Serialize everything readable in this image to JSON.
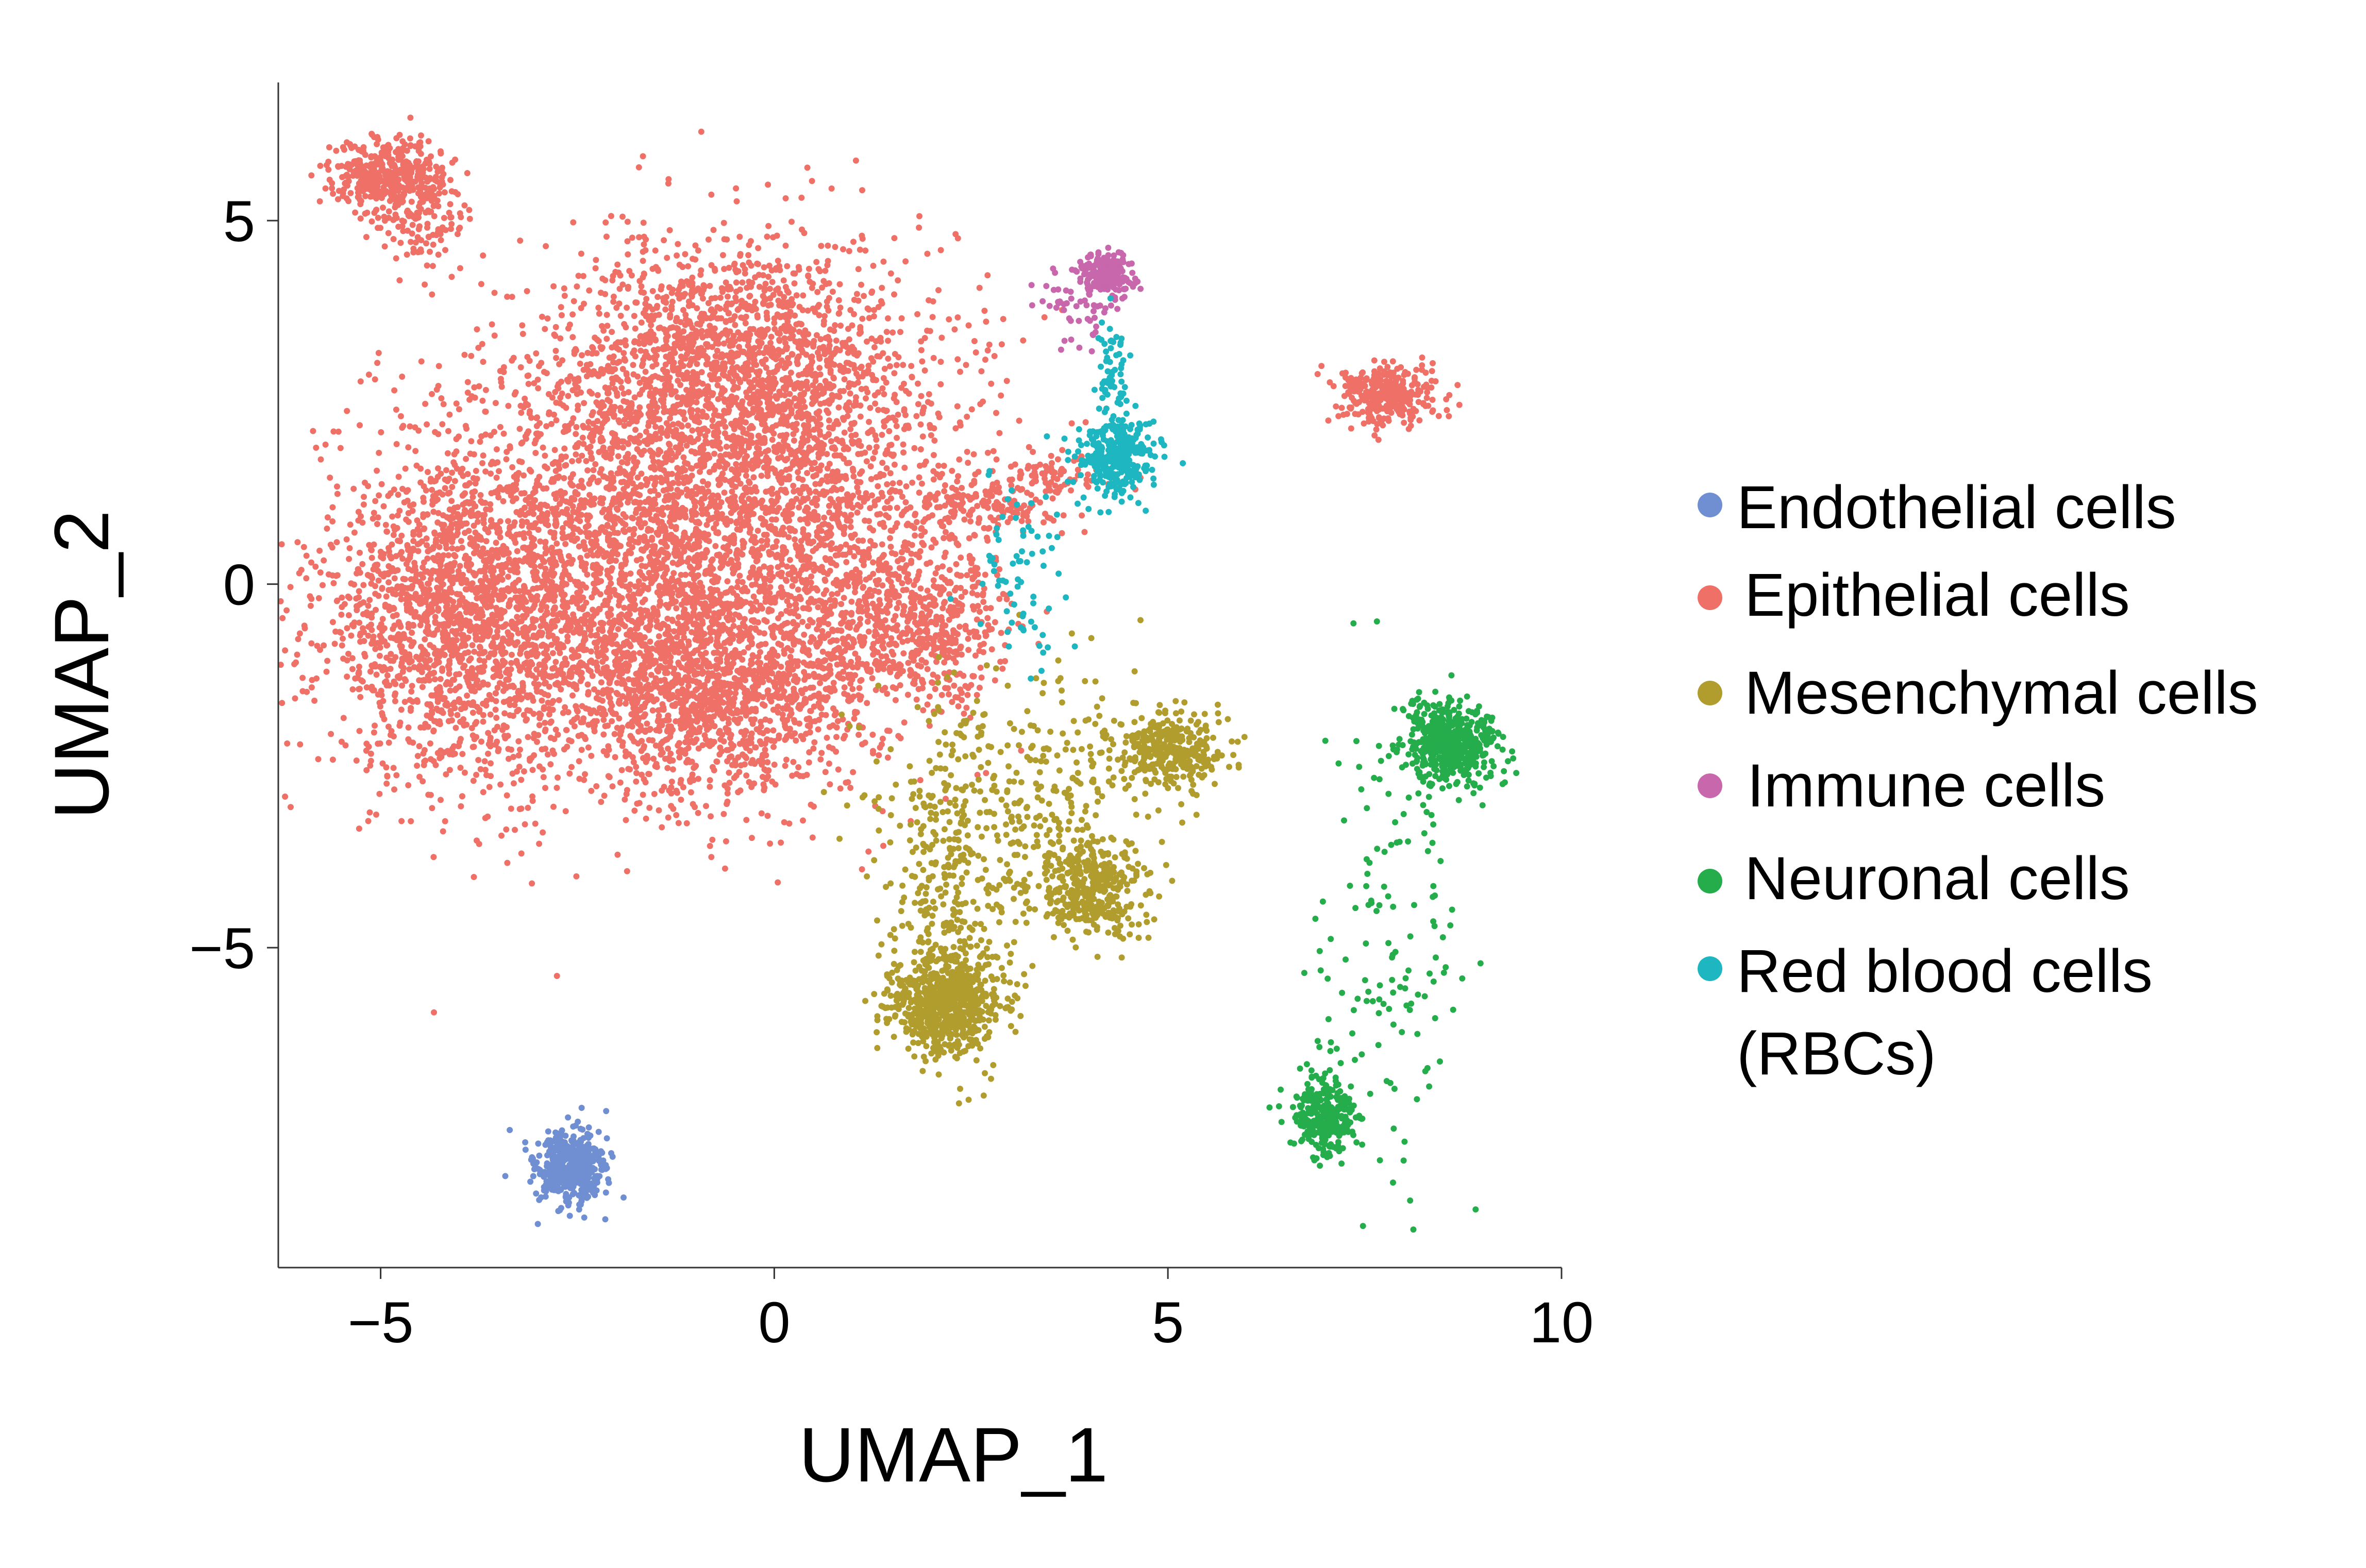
{
  "chart_data": {
    "type": "scatter",
    "title": "",
    "xlabel": "UMAP_1",
    "ylabel": "UMAP_2",
    "xlim": [
      -6.3,
      10.0
    ],
    "ylim": [
      -9.4,
      6.9
    ],
    "x_ticks": [
      {
        "value": -5,
        "label": "−5"
      },
      {
        "value": 0,
        "label": "0"
      },
      {
        "value": 5,
        "label": "5"
      },
      {
        "value": 10,
        "label": "10"
      }
    ],
    "y_ticks": [
      {
        "value": 5,
        "label": "5"
      },
      {
        "value": 0,
        "label": "0"
      },
      {
        "value": -5,
        "label": "−5"
      }
    ],
    "grid": false,
    "legend_position": "right",
    "series": [
      {
        "name": "Endothelial cells",
        "color": "#6f8fd2",
        "clusters": [
          {
            "center": [
              -2.6,
              -8.05
            ],
            "spread": [
              0.22,
              0.26
            ],
            "n": 500
          }
        ]
      },
      {
        "name": "Epithelial cells",
        "color": "#ee7067",
        "clusters": [
          {
            "center": [
              -2.0,
              0.4
            ],
            "spread": [
              1.5,
              1.5
            ],
            "n": 2600
          },
          {
            "center": [
              -4.0,
              -0.6
            ],
            "spread": [
              0.9,
              1.0
            ],
            "n": 1500
          },
          {
            "center": [
              0.1,
              1.2
            ],
            "spread": [
              1.3,
              1.4
            ],
            "n": 1800
          },
          {
            "center": [
              -0.5,
              3.2
            ],
            "spread": [
              1.0,
              0.8
            ],
            "n": 1200
          },
          {
            "center": [
              -0.7,
              -1.5
            ],
            "spread": [
              1.0,
              0.7
            ],
            "n": 1200
          },
          {
            "center": [
              1.8,
              -0.6
            ],
            "spread": [
              0.6,
              0.5
            ],
            "n": 500
          },
          {
            "center": [
              -4.9,
              5.6
            ],
            "spread": [
              0.35,
              0.25
            ],
            "n": 420
          },
          {
            "center": [
              -4.4,
              5.0
            ],
            "spread": [
              0.25,
              0.35
            ],
            "n": 120
          },
          {
            "center": [
              7.8,
              2.6
            ],
            "spread": [
              0.3,
              0.2
            ],
            "n": 330
          },
          {
            "center": [
              2.7,
              1.1
            ],
            "spread": [
              0.5,
              0.2
            ],
            "n": 140
          },
          {
            "center": [
              3.6,
              1.5
            ],
            "spread": [
              0.4,
              0.15
            ],
            "n": 80
          }
        ]
      },
      {
        "name": "Mesenchymal cells",
        "color": "#b19c2e",
        "clusters": [
          {
            "center": [
              2.2,
              -5.75
            ],
            "spread": [
              0.35,
              0.35
            ],
            "n": 700
          },
          {
            "center": [
              4.0,
              -4.2
            ],
            "spread": [
              0.35,
              0.3
            ],
            "n": 350
          },
          {
            "center": [
              5.0,
              -2.3
            ],
            "spread": [
              0.35,
              0.25
            ],
            "n": 330
          },
          {
            "center": [
              3.2,
              -2.9
            ],
            "spread": [
              0.9,
              0.9
            ],
            "n": 380
          },
          {
            "center": [
              2.2,
              -4.3
            ],
            "spread": [
              0.35,
              0.9
            ],
            "n": 220
          }
        ]
      },
      {
        "name": "Immune cells",
        "color": "#c867ab",
        "clusters": [
          {
            "center": [
              4.25,
              4.25
            ],
            "spread": [
              0.15,
              0.15
            ],
            "n": 200
          },
          {
            "center": [
              3.9,
              3.8
            ],
            "spread": [
              0.25,
              0.3
            ],
            "n": 60
          }
        ]
      },
      {
        "name": "Neuronal cells",
        "color": "#25ad4c",
        "clusters": [
          {
            "center": [
              8.6,
              -2.2
            ],
            "spread": [
              0.3,
              0.28
            ],
            "n": 520
          },
          {
            "center": [
              7.0,
              -7.3
            ],
            "spread": [
              0.2,
              0.25
            ],
            "n": 320
          },
          {
            "center": [
              7.8,
              -4.8
            ],
            "spread": [
              0.45,
              1.4
            ],
            "n": 140
          }
        ]
      },
      {
        "name": "Red blood cells\n(RBCs)",
        "color": "#1db6c1",
        "clusters": [
          {
            "center": [
              4.35,
              1.75
            ],
            "spread": [
              0.25,
              0.28
            ],
            "n": 320
          },
          {
            "center": [
              4.3,
              2.8
            ],
            "spread": [
              0.1,
              0.5
            ],
            "n": 60
          },
          {
            "center": [
              3.1,
              0.2
            ],
            "spread": [
              0.3,
              0.7
            ],
            "n": 70
          }
        ]
      }
    ]
  },
  "legend": {
    "items": [
      {
        "label": "Endothelial cells",
        "color": "#6f8fd2"
      },
      {
        "label": "Epithelial cells",
        "color": "#ee7067"
      },
      {
        "label": "Mesenchymal cells",
        "color": "#b19c2e"
      },
      {
        "label": "Immune cells",
        "color": "#c867ab"
      },
      {
        "label": "Neuronal cells",
        "color": "#25ad4c"
      },
      {
        "label_line1": "Red blood cells",
        "label_line2": "(RBCs)",
        "color": "#1db6c1"
      }
    ]
  }
}
